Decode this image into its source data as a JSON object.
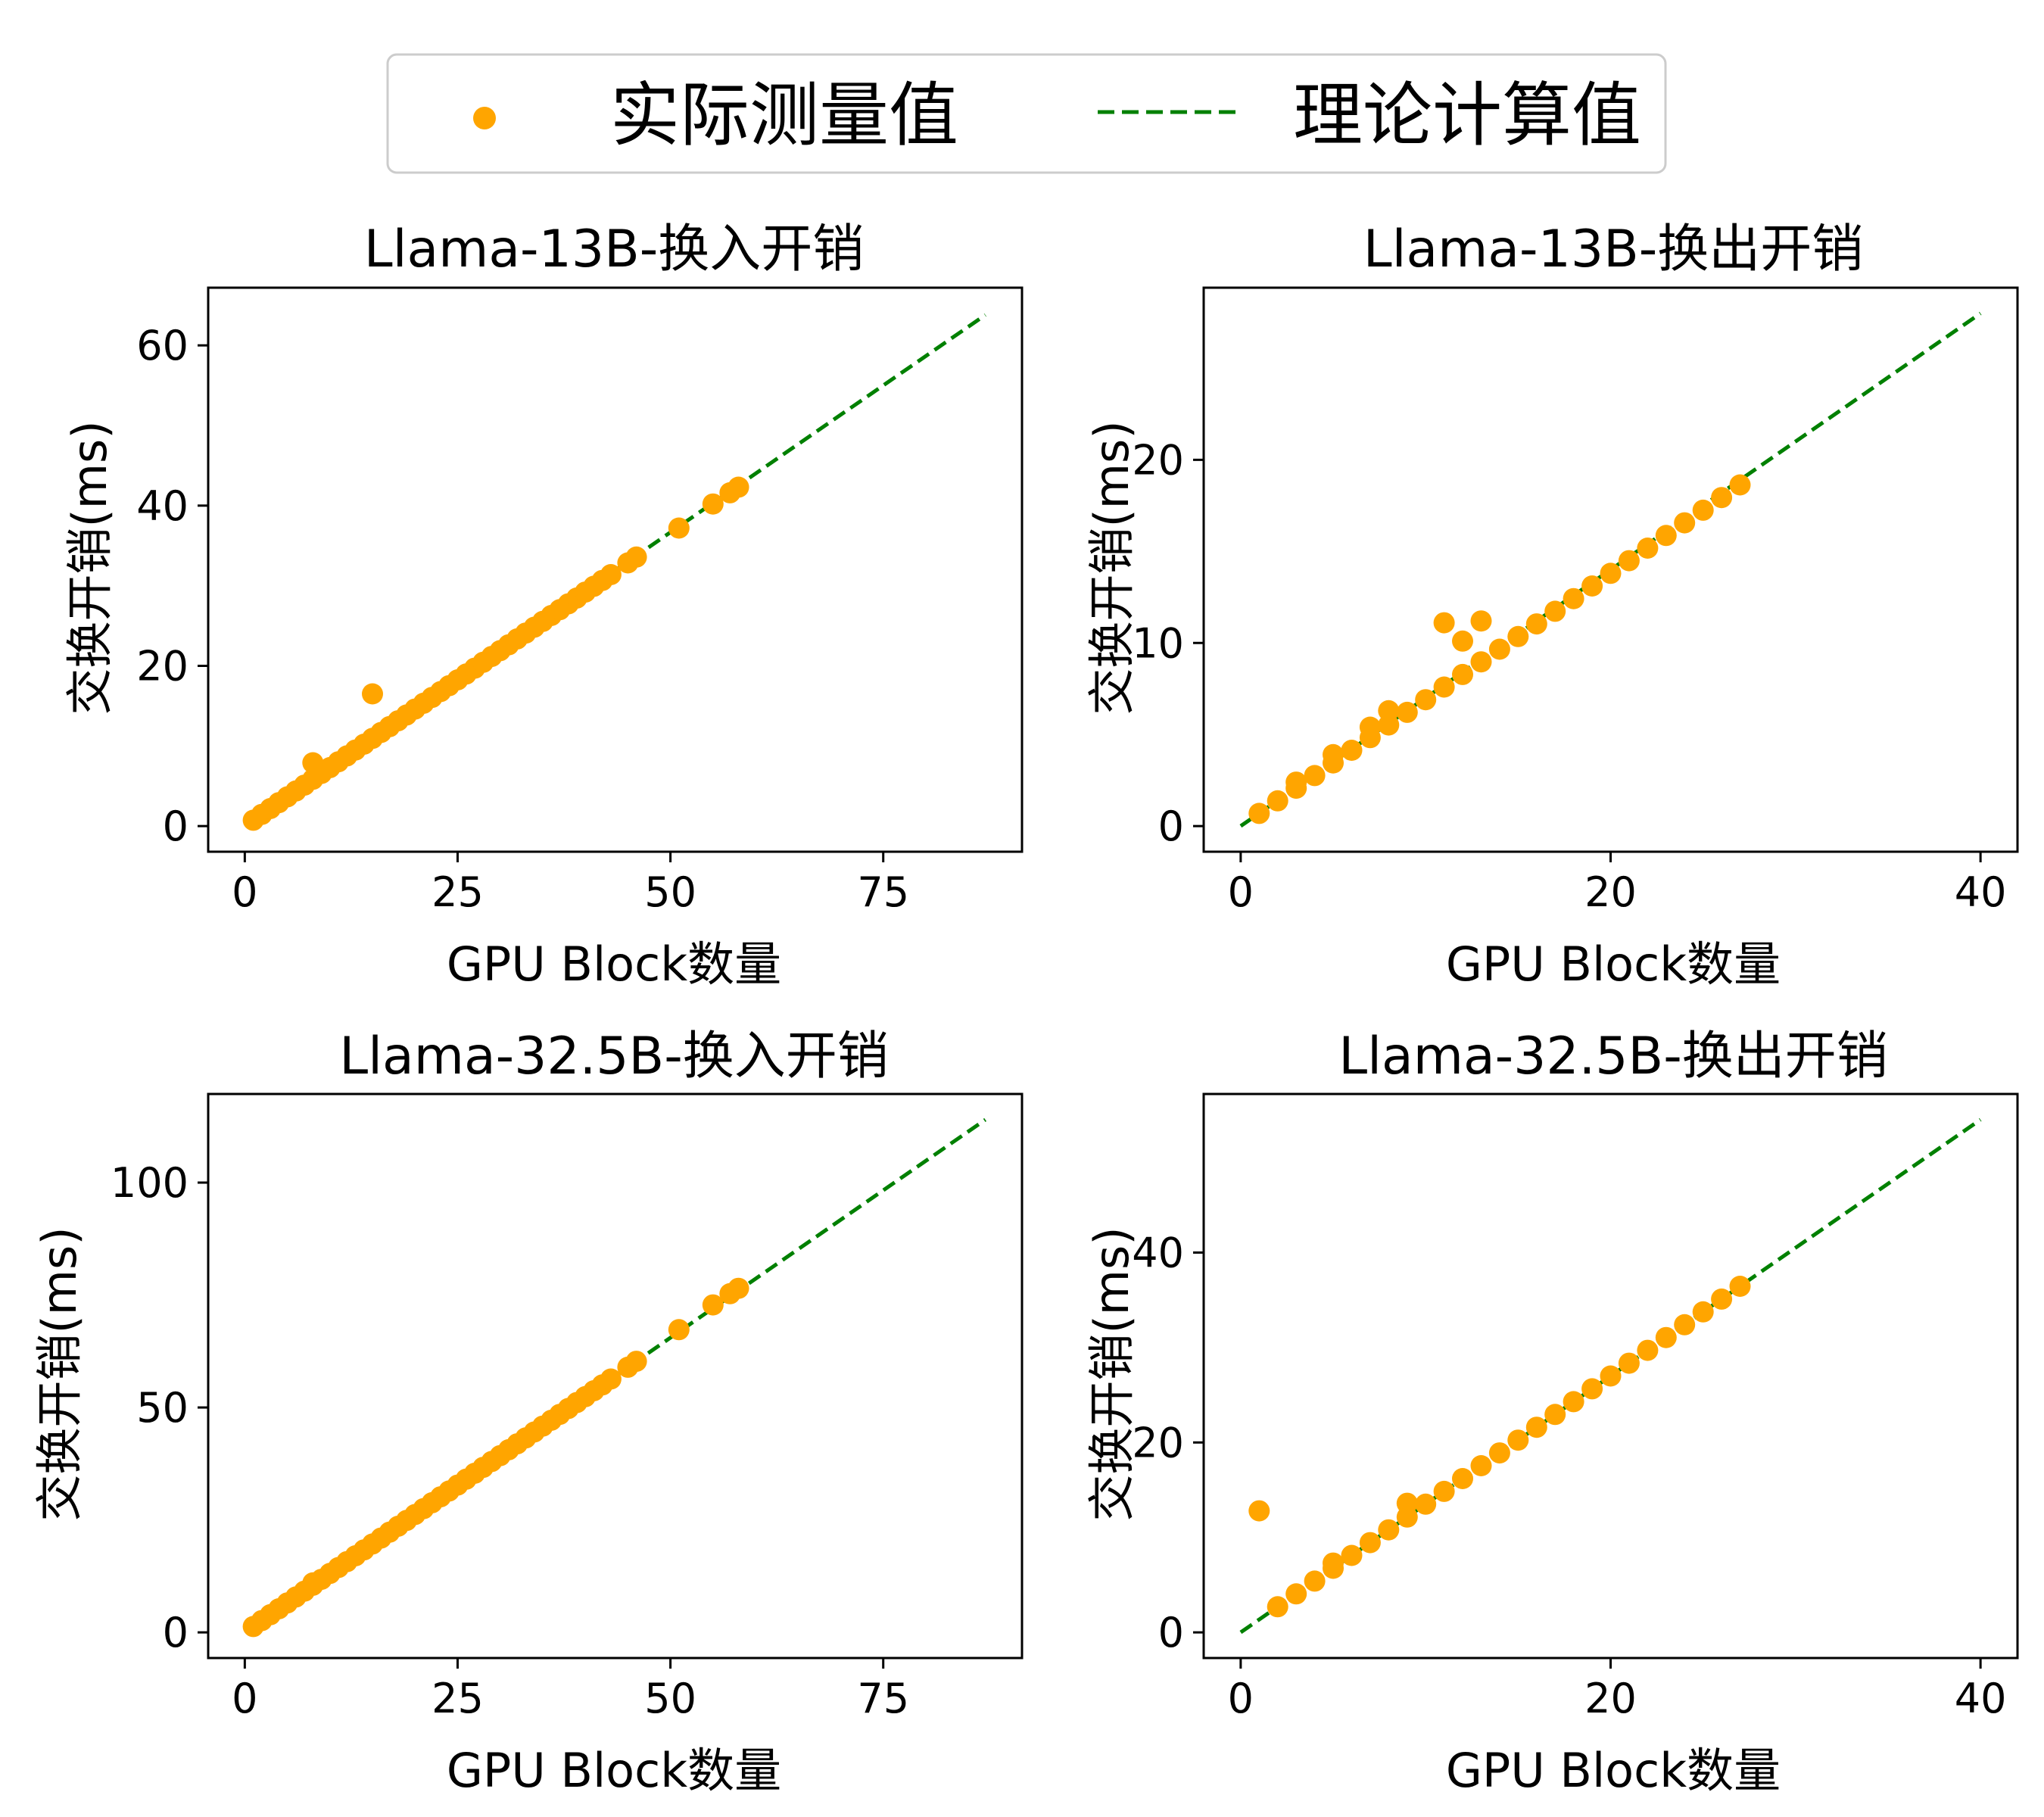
{
  "legend": {
    "entries": [
      {
        "label": "实际测量值",
        "kind": "marker"
      },
      {
        "label": "理论计算值",
        "kind": "dashed-line"
      }
    ],
    "placement": "top-center"
  },
  "colors": {
    "measured": "#FFA500",
    "theory": "#008000",
    "axes": "#000000",
    "background": "#FFFFFF"
  },
  "chart_data": [
    {
      "type": "scatter",
      "title": "Llama-13B-换入开销",
      "xlabel": "GPU Block数量",
      "ylabel": "交换开销(ms)",
      "xlim": [
        -4.3,
        91.3
      ],
      "ylim": [
        -3.2,
        67.2
      ],
      "xticks": [
        0,
        25,
        50,
        75
      ],
      "yticks": [
        0,
        20,
        40,
        60
      ],
      "grid": false,
      "series": [
        {
          "name": "实际测量值",
          "type": "scatter",
          "x": [
            1,
            2,
            3,
            4,
            5,
            6,
            7,
            8,
            9,
            10,
            11,
            12,
            13,
            14,
            15,
            16,
            17,
            18,
            19,
            20,
            21,
            22,
            23,
            24,
            25,
            26,
            27,
            28,
            29,
            30,
            31,
            32,
            33,
            34,
            35,
            36,
            37,
            38,
            39,
            40,
            41,
            42,
            43,
            45,
            46,
            51,
            55,
            57,
            58,
            8,
            15
          ],
          "y": [
            0.73,
            1.46,
            2.19,
            2.92,
            3.65,
            4.38,
            5.11,
            5.84,
            6.57,
            7.3,
            8.03,
            8.76,
            9.49,
            10.22,
            10.95,
            11.68,
            12.41,
            13.14,
            13.87,
            14.6,
            15.33,
            16.06,
            16.79,
            17.52,
            18.25,
            18.98,
            19.71,
            20.44,
            21.17,
            21.9,
            22.63,
            23.36,
            24.09,
            24.82,
            25.55,
            26.28,
            27.01,
            27.74,
            28.47,
            29.2,
            29.93,
            30.66,
            31.39,
            32.85,
            33.58,
            37.2,
            40.2,
            41.6,
            42.3,
            7.9,
            16.5
          ]
        },
        {
          "name": "理论计算值",
          "type": "line",
          "x": [
            0,
            87
          ],
          "y": [
            0,
            63.8
          ]
        }
      ]
    },
    {
      "type": "scatter",
      "title": "Llama-13B-换出开销",
      "xlabel": "GPU Block数量",
      "ylabel": "交换开销(ms)",
      "xlim": [
        -2.0,
        42.0
      ],
      "ylim": [
        -1.4,
        29.4
      ],
      "xticks": [
        0,
        20,
        40
      ],
      "yticks": [
        0,
        10,
        20
      ],
      "grid": false,
      "series": [
        {
          "name": "实际测量值",
          "type": "scatter",
          "x": [
            1,
            2,
            3,
            4,
            5,
            6,
            7,
            8,
            9,
            10,
            11,
            12,
            13,
            14,
            15,
            16,
            17,
            18,
            19,
            20,
            21,
            22,
            23,
            24,
            25,
            26,
            27,
            3,
            5,
            7,
            8,
            11,
            12,
            13
          ],
          "y": [
            0.69,
            1.38,
            2.07,
            2.76,
            3.45,
            4.14,
            4.83,
            5.52,
            6.21,
            6.9,
            7.59,
            8.28,
            8.97,
            9.66,
            10.35,
            11.04,
            11.73,
            12.42,
            13.11,
            13.8,
            14.49,
            15.18,
            15.87,
            16.56,
            17.25,
            17.94,
            18.63,
            2.4,
            3.9,
            5.4,
            6.3,
            11.1,
            10.1,
            11.2
          ]
        },
        {
          "name": "理论计算值",
          "type": "line",
          "x": [
            0,
            40
          ],
          "y": [
            0,
            28
          ]
        }
      ]
    },
    {
      "type": "scatter",
      "title": "Llama-32.5B-换入开销",
      "xlabel": "GPU Block数量",
      "ylabel": "交换开销(ms)",
      "xlim": [
        -4.3,
        91.3
      ],
      "ylim": [
        -5.7,
        119.7
      ],
      "xticks": [
        0,
        25,
        50,
        75
      ],
      "yticks": [
        0,
        50,
        100
      ],
      "grid": false,
      "series": [
        {
          "name": "实际测量值",
          "type": "scatter",
          "x": [
            1,
            2,
            3,
            4,
            5,
            6,
            7,
            8,
            9,
            10,
            11,
            12,
            13,
            14,
            15,
            16,
            17,
            18,
            19,
            20,
            21,
            22,
            23,
            24,
            25,
            26,
            27,
            28,
            29,
            30,
            31,
            32,
            33,
            34,
            35,
            36,
            37,
            38,
            39,
            40,
            41,
            42,
            43,
            45,
            46,
            51,
            55,
            57,
            58,
            8
          ],
          "y": [
            1.31,
            2.62,
            3.93,
            5.24,
            6.55,
            7.86,
            9.17,
            10.48,
            11.79,
            13.1,
            14.41,
            15.72,
            17.03,
            18.34,
            19.65,
            20.96,
            22.27,
            23.58,
            24.89,
            26.2,
            27.51,
            28.82,
            30.13,
            31.44,
            32.75,
            34.06,
            35.37,
            36.68,
            37.99,
            39.3,
            40.61,
            41.92,
            43.23,
            44.54,
            45.85,
            47.16,
            48.47,
            49.78,
            51.09,
            52.4,
            53.71,
            55.02,
            56.33,
            58.95,
            60.26,
            67.3,
            72.8,
            75.3,
            76.5,
            11.0
          ]
        },
        {
          "name": "理论计算值",
          "type": "line",
          "x": [
            0,
            87
          ],
          "y": [
            0,
            114
          ]
        }
      ]
    },
    {
      "type": "scatter",
      "title": "Llama-32.5B-换出开销",
      "xlabel": "GPU Block数量",
      "ylabel": "交换开销(ms)",
      "xlim": [
        -2.0,
        42.0
      ],
      "ylim": [
        -2.7,
        56.7
      ],
      "xticks": [
        0,
        20,
        40
      ],
      "yticks": [
        0,
        20,
        40
      ],
      "grid": false,
      "series": [
        {
          "name": "实际测量值",
          "type": "scatter",
          "x": [
            2,
            3,
            4,
            5,
            6,
            7,
            8,
            9,
            10,
            11,
            12,
            13,
            14,
            15,
            16,
            17,
            18,
            19,
            20,
            21,
            22,
            23,
            24,
            25,
            26,
            27,
            1,
            5,
            9
          ],
          "y": [
            2.7,
            4.05,
            5.4,
            6.75,
            8.1,
            9.45,
            10.8,
            12.15,
            13.5,
            14.85,
            16.2,
            17.55,
            18.9,
            20.25,
            21.6,
            22.95,
            24.3,
            25.65,
            27.0,
            28.35,
            29.7,
            31.05,
            32.4,
            33.75,
            35.1,
            36.45,
            12.8,
            7.3,
            13.6
          ]
        },
        {
          "name": "理论计算值",
          "type": "line",
          "x": [
            0,
            40
          ],
          "y": [
            0,
            54
          ]
        }
      ]
    }
  ]
}
